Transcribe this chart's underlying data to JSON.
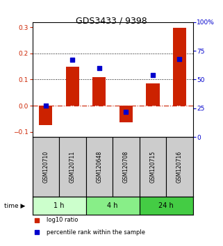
{
  "title": "GDS3433 / 9398",
  "samples": [
    "GSM120710",
    "GSM120711",
    "GSM120648",
    "GSM120708",
    "GSM120715",
    "GSM120716"
  ],
  "log10_ratio": [
    -0.075,
    0.148,
    0.108,
    -0.065,
    0.085,
    0.298
  ],
  "percentile_rank": [
    27,
    67,
    60,
    22,
    54,
    68
  ],
  "time_groups": [
    {
      "label": "1 h",
      "start": 0,
      "end": 2,
      "color": "#ccffcc"
    },
    {
      "label": "4 h",
      "start": 2,
      "end": 4,
      "color": "#88ee88"
    },
    {
      "label": "24 h",
      "start": 4,
      "end": 6,
      "color": "#44cc44"
    }
  ],
  "bar_color": "#cc2200",
  "dot_color": "#0000cc",
  "ylim_left": [
    -0.12,
    0.32
  ],
  "ylim_right": [
    0,
    100
  ],
  "yticks_left": [
    -0.1,
    0.0,
    0.1,
    0.2,
    0.3
  ],
  "yticks_right": [
    0,
    25,
    50,
    75,
    100
  ],
  "hline_zero_color": "#cc2200",
  "hline_dotted_vals": [
    0.1,
    0.2
  ],
  "background_color": "#ffffff",
  "plot_bg_color": "#ffffff",
  "label_bg_color": "#cccccc",
  "legend_labels": [
    "log10 ratio",
    "percentile rank within the sample"
  ],
  "bar_width": 0.5
}
